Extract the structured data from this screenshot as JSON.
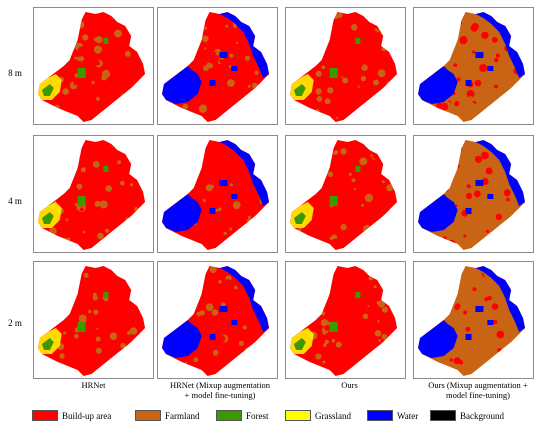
{
  "row_labels": [
    "8 m",
    "4 m",
    "2 m"
  ],
  "column_labels": [
    "HRNet",
    "HRNet (Mixup augmentation\n+ model fine-tuning)",
    "Ours",
    "Ours (Mixup augmentation +\nmodel fine-tuning)"
  ],
  "column_variants": [
    "grass",
    "water",
    "grass",
    "water"
  ],
  "legend": [
    {
      "label": "Build-up area",
      "color": "#ff0000"
    },
    {
      "label": "Farmland",
      "color": "#c86414"
    },
    {
      "label": "Forest",
      "color": "#3c9a00"
    },
    {
      "label": "Grassland",
      "color": "#ffff00"
    },
    {
      "label": "Water",
      "color": "#0000ff"
    },
    {
      "label": "Background",
      "color": "#000000"
    }
  ]
}
